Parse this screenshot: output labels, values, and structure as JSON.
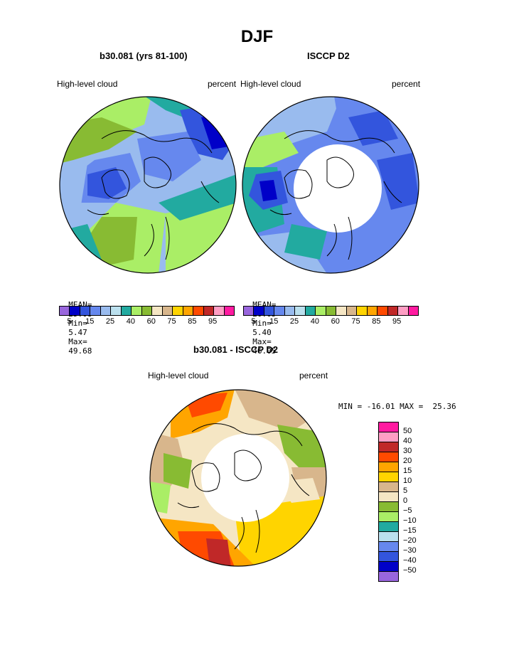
{
  "page": {
    "title": "DJF",
    "panels": {
      "left": {
        "title": "b30.081 (yrs 81-100)",
        "left_label": "High-level cloud",
        "right_label": "percent",
        "mean_label": "MEAN=",
        "mean": "25.08",
        "min_label": "Min=",
        "min": "5.47",
        "max_label": "Max=",
        "max": "49.68"
      },
      "right": {
        "title": "ISCCP D2",
        "left_label": "High-level cloud",
        "right_label": "percent",
        "mean_label": "MEAN=",
        "mean": "20.65",
        "min_label": "Min=",
        "min": "5.40",
        "max_label": "Max=",
        "max": "46.05"
      },
      "diff": {
        "title": "b30.081 - ISCCP D2",
        "left_label": "High-level cloud",
        "right_label": "percent",
        "minmax": "MIN = -16.01 MAX =  25.36"
      }
    },
    "colorbar_abs": {
      "colors": [
        "#9966dd",
        "#0000c8",
        "#3355dd",
        "#6688ee",
        "#99bbee",
        "#bbe0ee",
        "#22aaa0",
        "#aaee66",
        "#88bb33",
        "#f5e6c4",
        "#d8b68c",
        "#ffd400",
        "#ffa500",
        "#ff4a00",
        "#c02828",
        "#ff9ec4",
        "#ff1aa0"
      ],
      "labels": [
        "5",
        "15",
        "25",
        "40",
        "60",
        "75",
        "85",
        "95"
      ]
    },
    "colorbar_diff": {
      "colors": [
        "#ff1aa0",
        "#ff9ec4",
        "#c02828",
        "#ff4a00",
        "#ffa500",
        "#ffd400",
        "#d8b68c",
        "#f5e6c4",
        "#88bb33",
        "#aaee66",
        "#22aaa0",
        "#bbe0ee",
        "#6688ee",
        "#3355dd",
        "#0000c8",
        "#9966dd"
      ],
      "labels": [
        "50",
        "40",
        "30",
        "20",
        "15",
        "10",
        "5",
        "0",
        "−5",
        "−10",
        "−15",
        "−20",
        "−30",
        "−40",
        "−50"
      ]
    }
  }
}
